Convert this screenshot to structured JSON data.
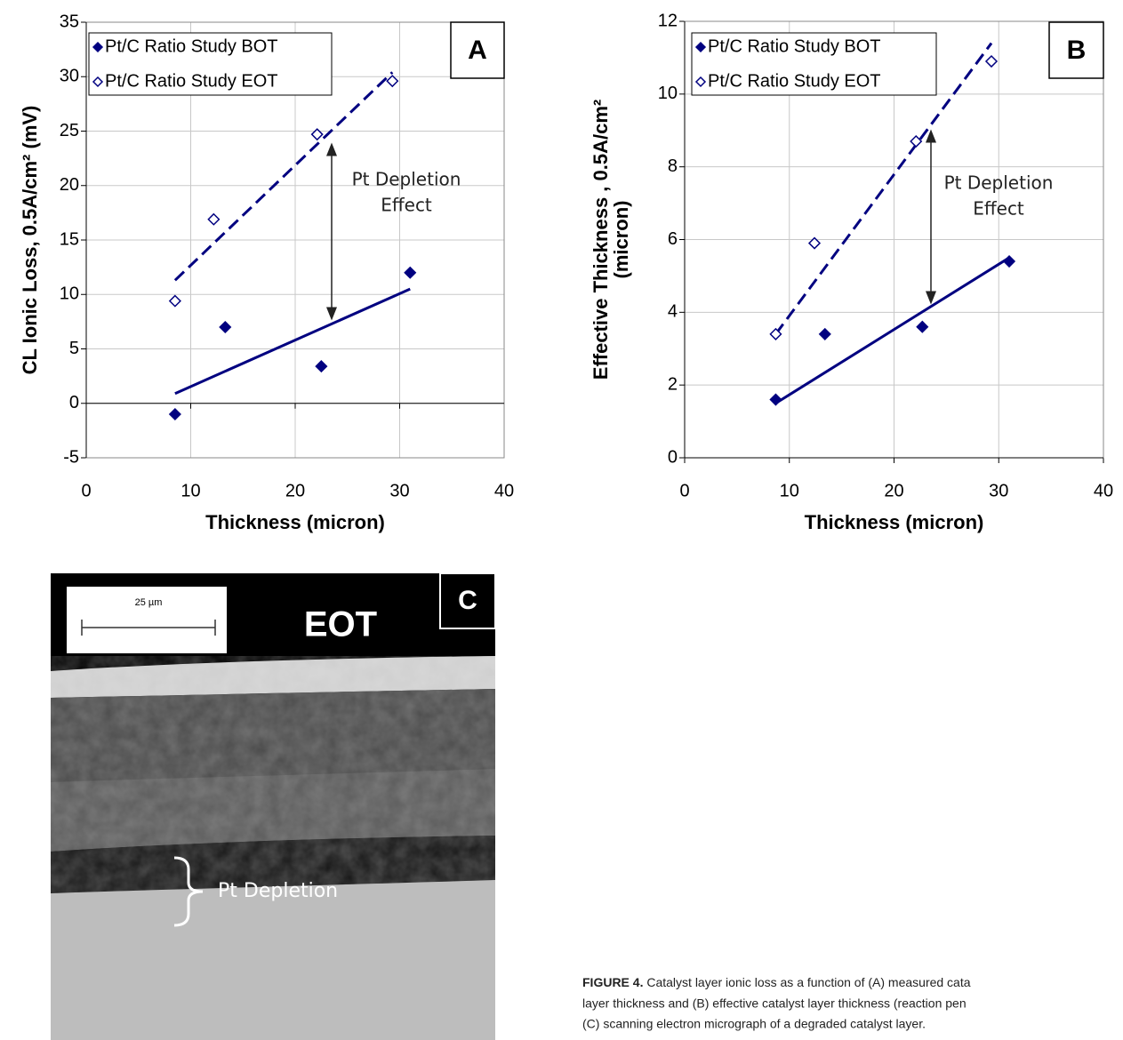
{
  "chart_data": [
    {
      "type": "scatter",
      "panel": "A",
      "xlabel": "Thickness (micron)",
      "ylabel": [
        "CL Ionic Loss, 0.5A/cm² (mV)"
      ],
      "xlim": [
        0,
        40
      ],
      "xticks": [
        0,
        10,
        20,
        30,
        40
      ],
      "ylim": [
        -5,
        35
      ],
      "yticks": [
        -5,
        0,
        5,
        10,
        15,
        20,
        25,
        30,
        35
      ],
      "grid": true,
      "legend": "upper left",
      "annotation": [
        "Pt Depletion",
        "Effect"
      ],
      "series": [
        {
          "name": "Pt/C Ratio Study BOT",
          "color": "#000080",
          "marker": "filled",
          "x": [
            8.5,
            13.3,
            22.5,
            31
          ],
          "values": [
            -1,
            7,
            3.4,
            12
          ],
          "trend": {
            "x": [
              8.5,
              31
            ],
            "values": [
              0.9,
              10.5
            ],
            "dashed": false
          }
        },
        {
          "name": "Pt/C Ratio Study EOT",
          "color": "#000080",
          "marker": "open",
          "x": [
            8.5,
            12.2,
            22.1,
            29.3
          ],
          "values": [
            9.4,
            16.9,
            24.7,
            29.6
          ],
          "trend": {
            "x": [
              8.5,
              29.3
            ],
            "values": [
              11.3,
              30.4
            ],
            "dashed": true
          }
        }
      ]
    },
    {
      "type": "scatter",
      "panel": "B",
      "xlabel": "Thickness (micron)",
      "ylabel": [
        "Effective Thickness , 0.5A/cm²",
        "(micron)"
      ],
      "xlim": [
        0,
        40
      ],
      "xticks": [
        0,
        10,
        20,
        30,
        40
      ],
      "ylim": [
        0,
        12
      ],
      "yticks": [
        0,
        2,
        4,
        6,
        8,
        10,
        12
      ],
      "grid": true,
      "legend": "upper left",
      "annotation": [
        "Pt Depletion",
        "Effect"
      ],
      "series": [
        {
          "name": "Pt/C Ratio Study BOT",
          "color": "#000080",
          "marker": "filled",
          "x": [
            8.7,
            13.4,
            22.7,
            31
          ],
          "values": [
            1.6,
            3.4,
            3.6,
            5.4
          ],
          "trend": {
            "x": [
              8.7,
              31
            ],
            "values": [
              1.5,
              5.5
            ],
            "dashed": false
          }
        },
        {
          "name": "Pt/C Ratio Study EOT",
          "color": "#000080",
          "marker": "open",
          "x": [
            8.7,
            12.4,
            22.1,
            29.3
          ],
          "values": [
            3.4,
            5.9,
            8.7,
            10.9
          ],
          "trend": {
            "x": [
              8.7,
              29.3
            ],
            "values": [
              3.4,
              11.4
            ],
            "dashed": true
          }
        }
      ]
    }
  ],
  "panel_c": {
    "label": "C",
    "scale_bar": "25 µm",
    "tag": "EOT",
    "annotation": "Pt Depletion"
  },
  "caption": {
    "label": "FIGURE 4.",
    "lines": [
      "Catalyst layer ionic loss as a function of (A) measured cata",
      "layer thickness and (B) effective catalyst layer thickness (reaction pen",
      "(C) scanning electron micrograph of a degraded catalyst layer."
    ]
  }
}
